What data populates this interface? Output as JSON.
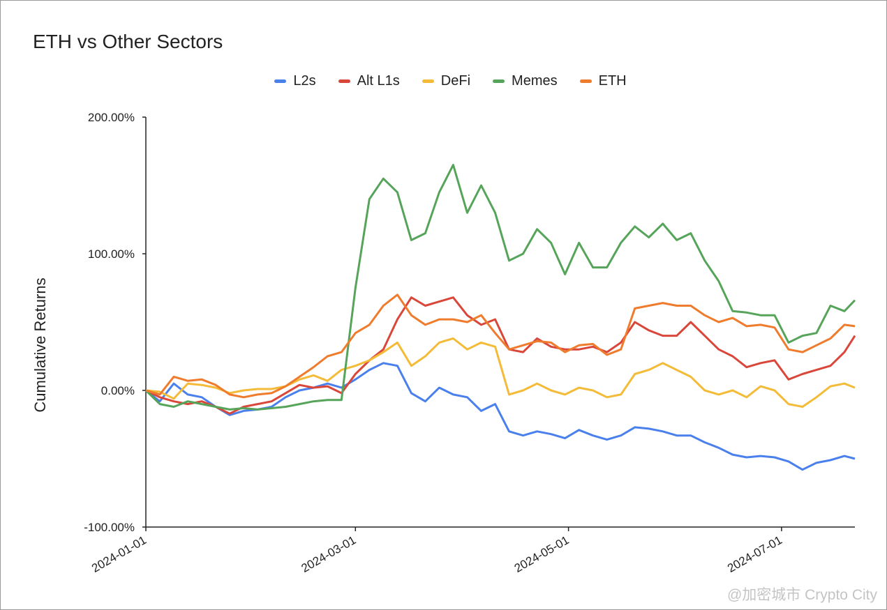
{
  "chart_data": {
    "type": "line",
    "title": "ETH vs Other Sectors",
    "xlabel": "",
    "ylabel": "Cumulative Returns",
    "ylim": [
      -100,
      200
    ],
    "yticks": [
      "200.00%",
      "100.00%",
      "0.00%",
      "-100.00%"
    ],
    "ytick_values": [
      200,
      100,
      0,
      -100
    ],
    "xlim": [
      "2024-01-01",
      "2024-07-22"
    ],
    "xticks": [
      "2024-01-01",
      "2024-03-01",
      "2024-05-01",
      "2024-07-01"
    ],
    "grid": false,
    "legend_position": "top",
    "x": [
      "2024-01-01",
      "2024-01-05",
      "2024-01-09",
      "2024-01-13",
      "2024-01-17",
      "2024-01-21",
      "2024-01-25",
      "2024-01-29",
      "2024-02-02",
      "2024-02-06",
      "2024-02-10",
      "2024-02-14",
      "2024-02-18",
      "2024-02-22",
      "2024-02-26",
      "2024-03-01",
      "2024-03-05",
      "2024-03-09",
      "2024-03-13",
      "2024-03-17",
      "2024-03-21",
      "2024-03-25",
      "2024-03-29",
      "2024-04-02",
      "2024-04-06",
      "2024-04-10",
      "2024-04-14",
      "2024-04-18",
      "2024-04-22",
      "2024-04-26",
      "2024-04-30",
      "2024-05-04",
      "2024-05-08",
      "2024-05-12",
      "2024-05-16",
      "2024-05-20",
      "2024-05-24",
      "2024-05-28",
      "2024-06-01",
      "2024-06-05",
      "2024-06-09",
      "2024-06-13",
      "2024-06-17",
      "2024-06-21",
      "2024-06-25",
      "2024-06-29",
      "2024-07-03",
      "2024-07-07",
      "2024-07-11",
      "2024-07-15",
      "2024-07-19",
      "2024-07-22"
    ],
    "series": [
      {
        "name": "L2s",
        "color": "#4a80ec",
        "values": [
          0,
          -8,
          5,
          -3,
          -5,
          -12,
          -18,
          -15,
          -14,
          -12,
          -5,
          0,
          2,
          5,
          2,
          8,
          15,
          20,
          18,
          -2,
          -8,
          2,
          -3,
          -5,
          -15,
          -10,
          -30,
          -33,
          -30,
          -32,
          -35,
          -29,
          -33,
          -36,
          -33,
          -27,
          -28,
          -30,
          -33,
          -33,
          -38,
          -42,
          -47,
          -49,
          -48,
          -49,
          -52,
          -58,
          -53,
          -51,
          -48,
          -50
        ]
      },
      {
        "name": "Alt L1s",
        "color": "#d9473a",
        "values": [
          0,
          -5,
          -8,
          -10,
          -8,
          -12,
          -17,
          -12,
          -10,
          -8,
          -2,
          4,
          2,
          3,
          -2,
          12,
          22,
          30,
          52,
          68,
          62,
          65,
          68,
          55,
          48,
          52,
          30,
          28,
          38,
          32,
          30,
          30,
          32,
          28,
          35,
          50,
          44,
          40,
          40,
          50,
          40,
          30,
          25,
          17,
          20,
          22,
          8,
          12,
          15,
          18,
          28,
          40
        ]
      },
      {
        "name": "DeFi",
        "color": "#f3bb37",
        "values": [
          0,
          -1,
          -6,
          5,
          4,
          2,
          -2,
          0,
          1,
          1,
          3,
          8,
          11,
          7,
          15,
          18,
          22,
          28,
          35,
          18,
          25,
          35,
          38,
          30,
          35,
          32,
          -3,
          0,
          5,
          0,
          -3,
          2,
          0,
          -5,
          -3,
          12,
          15,
          20,
          15,
          10,
          0,
          -3,
          0,
          -5,
          3,
          0,
          -10,
          -12,
          -5,
          3,
          5,
          2
        ]
      },
      {
        "name": "Memes",
        "color": "#56a45a",
        "values": [
          0,
          -10,
          -12,
          -8,
          -10,
          -12,
          -14,
          -13,
          -14,
          -13,
          -12,
          -10,
          -8,
          -7,
          -7,
          75,
          140,
          155,
          145,
          110,
          115,
          145,
          165,
          130,
          150,
          130,
          95,
          100,
          118,
          108,
          85,
          108,
          90,
          90,
          108,
          120,
          112,
          122,
          110,
          115,
          95,
          80,
          58,
          57,
          55,
          55,
          35,
          40,
          42,
          62,
          58,
          66
        ]
      },
      {
        "name": "ETH",
        "color": "#ef7b2c",
        "values": [
          0,
          -3,
          10,
          7,
          8,
          4,
          -3,
          -5,
          -3,
          -2,
          3,
          10,
          17,
          25,
          28,
          42,
          48,
          62,
          70,
          55,
          48,
          52,
          52,
          50,
          55,
          42,
          30,
          33,
          36,
          35,
          28,
          33,
          34,
          26,
          30,
          60,
          62,
          64,
          62,
          62,
          55,
          50,
          53,
          47,
          48,
          46,
          30,
          28,
          33,
          38,
          48,
          47
        ]
      }
    ]
  },
  "watermark": "@加密城市 Crypto City"
}
